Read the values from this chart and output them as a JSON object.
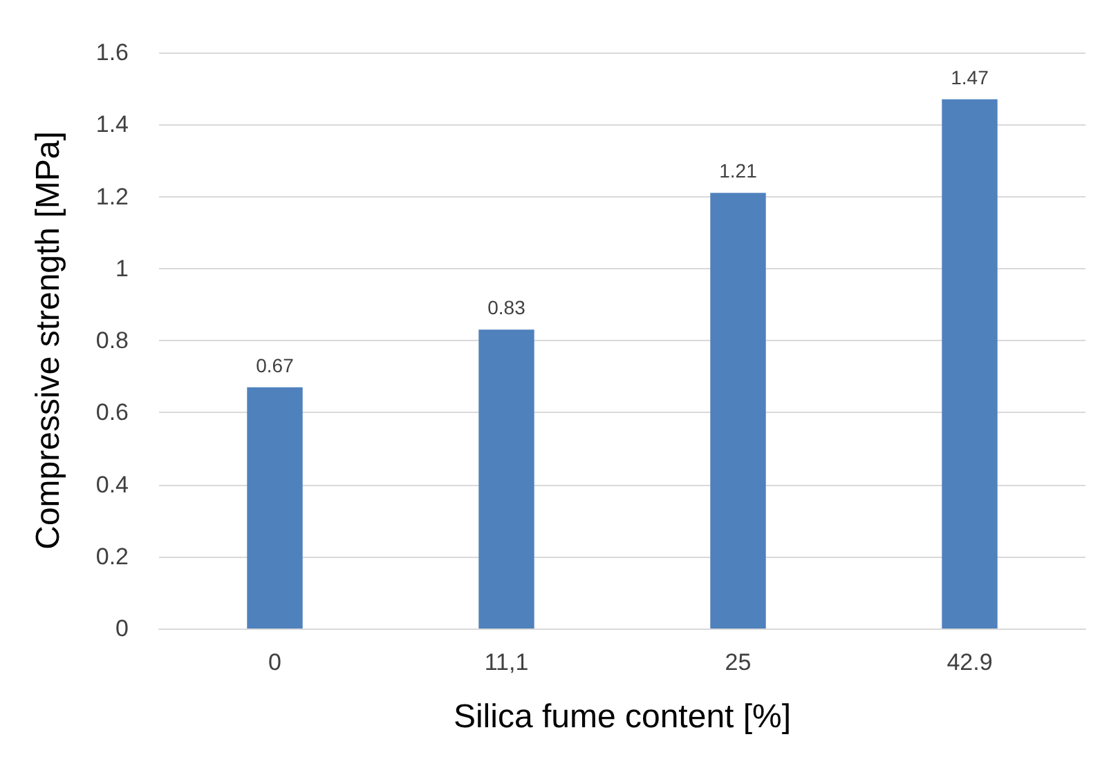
{
  "chart_data": {
    "type": "bar",
    "xlabel": "Silica fume content [%]",
    "ylabel": "Compressive strength [MPa]",
    "categories": [
      "0",
      "11,1",
      "25",
      "42.9"
    ],
    "values": [
      0.67,
      0.83,
      1.21,
      1.47
    ],
    "color": "#4f81bd",
    "ylim": [
      0,
      1.6
    ],
    "yticks": [
      0,
      0.2,
      0.4,
      0.6,
      0.8,
      1,
      1.2,
      1.4,
      1.6
    ],
    "grid": "y",
    "data_labels": true
  }
}
